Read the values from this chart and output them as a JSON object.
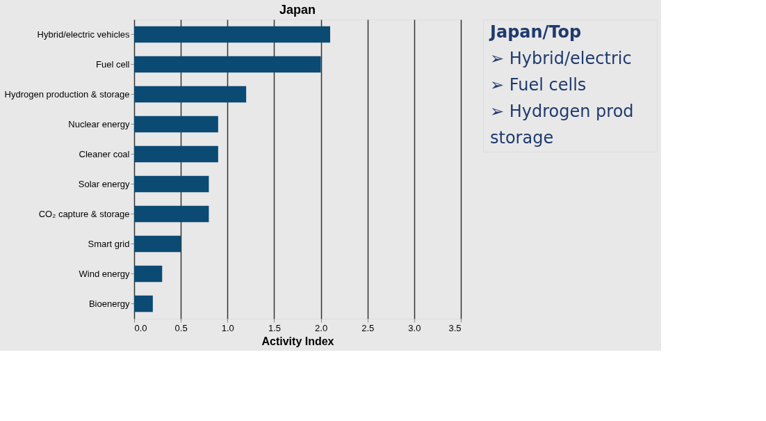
{
  "chart_data": {
    "type": "bar",
    "orientation": "horizontal",
    "title": "Japan",
    "xlabel": "Activity Index",
    "categories": [
      "Hybrid/electric vehicles",
      "Fuel cell",
      "Hydrogen production & storage",
      "Nuclear energy",
      "Cleaner coal",
      "Solar energy",
      "CO₂ capture & storage",
      "Smart grid",
      "Wind energy",
      "Bioenergy"
    ],
    "values": [
      2.1,
      2.0,
      1.2,
      0.9,
      0.9,
      0.8,
      0.8,
      0.5,
      0.3,
      0.2
    ],
    "color": "#0b4a73",
    "xlim": [
      0,
      3.5
    ],
    "xticks": [
      {
        "value": 0,
        "label": "0.0"
      },
      0.5,
      {
        "value": 1,
        "label": "1.0"
      },
      1.5,
      {
        "value": 2,
        "label": "2.0"
      },
      2.5,
      {
        "value": 3,
        "label": "3.0"
      },
      3.5
    ],
    "grid": "x",
    "annotations": [
      "Japan/Top",
      "➢ Hybrid/electric",
      "➢ Fuel cells",
      "➢ Hydrogen prod",
      "storage"
    ]
  }
}
